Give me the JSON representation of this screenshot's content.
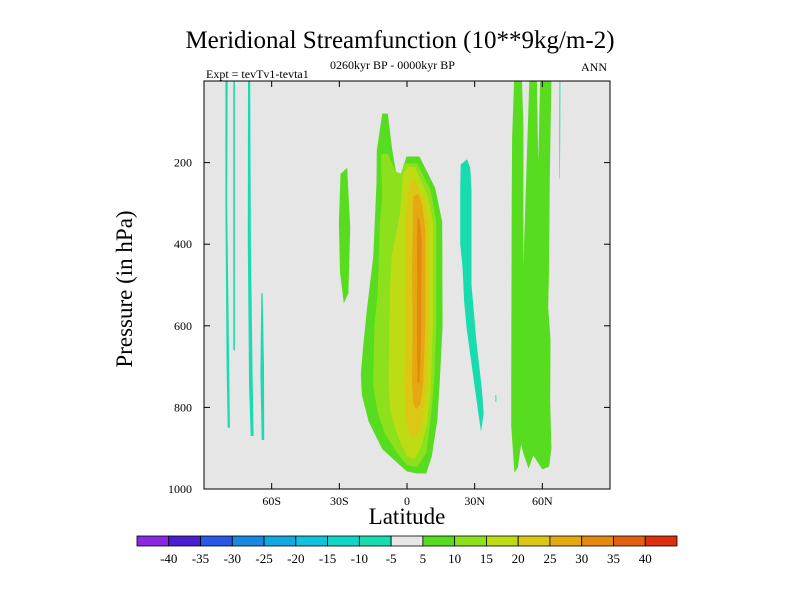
{
  "chart_data": {
    "type": "contour",
    "title": "Meridional Streamfunction (10**9kg/m-2)",
    "experiment_label": "Expt = tevTv1-tevta1",
    "period_label": "0260kyr BP - 0000kyr BP",
    "season_label": "ANN",
    "xlabel": "Latitude",
    "ylabel": "Pressure (in hPa)",
    "xlim": [
      -90,
      90
    ],
    "ylim": [
      1000,
      0
    ],
    "x_ticks": [
      {
        "value": -60,
        "label": "60S"
      },
      {
        "value": -30,
        "label": "30S"
      },
      {
        "value": 0,
        "label": "0"
      },
      {
        "value": 30,
        "label": "30N"
      },
      {
        "value": 60,
        "label": "60N"
      }
    ],
    "y_ticks": [
      {
        "value": 200,
        "label": "200"
      },
      {
        "value": 400,
        "label": "400"
      },
      {
        "value": 600,
        "label": "600"
      },
      {
        "value": 800,
        "label": "800"
      },
      {
        "value": 1000,
        "label": "1000"
      }
    ],
    "colorbar": {
      "levels": [
        -40,
        -35,
        -30,
        -25,
        -20,
        -15,
        -10,
        -5,
        5,
        10,
        15,
        20,
        25,
        30,
        35,
        40
      ],
      "colors": [
        "#8a28e6",
        "#4a1ed0",
        "#2858e8",
        "#1888e0",
        "#10a8e0",
        "#10c2dc",
        "#10d6c8",
        "#18dcae",
        "#e6e6e6",
        "#58dc20",
        "#8ce01c",
        "#bedc14",
        "#dcc814",
        "#e4a810",
        "#e48810",
        "#e06010",
        "#dc3010"
      ]
    },
    "background_color": "#e6e6e6",
    "regions": [
      {
        "value_band": "-10 to -5",
        "points": [
          [
            -80.5,
            0
          ],
          [
            -79.5,
            0
          ],
          [
            -79.7,
            300
          ],
          [
            -78.5,
            850
          ],
          [
            -79.5,
            850
          ],
          [
            -80,
            700
          ],
          [
            -80.5,
            300
          ]
        ]
      },
      {
        "value_band": "-10 to -5",
        "points": [
          [
            -77,
            0
          ],
          [
            -76.3,
            0
          ],
          [
            -76.3,
            660
          ],
          [
            -77,
            660
          ]
        ]
      },
      {
        "value_band": "-10 to -5",
        "points": [
          [
            -70.5,
            0
          ],
          [
            -69.5,
            0
          ],
          [
            -69.2,
            400
          ],
          [
            -68.4,
            740
          ],
          [
            -68,
            870
          ],
          [
            -69.3,
            870
          ],
          [
            -70,
            750
          ],
          [
            -70.6,
            400
          ]
        ]
      },
      {
        "value_band": "-10 to -5",
        "points": [
          [
            -64.6,
            520
          ],
          [
            -64,
            520
          ],
          [
            -63.4,
            700
          ],
          [
            -63.3,
            880
          ],
          [
            -64.4,
            880
          ],
          [
            -65,
            720
          ]
        ]
      },
      {
        "value_band": "5 to 10",
        "points": [
          [
            -29.5,
            228
          ],
          [
            -26.5,
            213
          ],
          [
            -25.2,
            360
          ],
          [
            -26,
            520
          ],
          [
            -28,
            545
          ],
          [
            -29.7,
            470
          ],
          [
            -30.2,
            345
          ]
        ]
      },
      {
        "value_band": "5 to 10",
        "points": [
          [
            -11,
            80
          ],
          [
            -8.5,
            80
          ],
          [
            -6.5,
            170
          ],
          [
            -4,
            250
          ],
          [
            -0.2,
            185
          ],
          [
            5.5,
            185
          ],
          [
            12.5,
            262
          ],
          [
            15.6,
            345
          ],
          [
            15.7,
            460
          ],
          [
            15.8,
            600
          ],
          [
            14.5,
            740
          ],
          [
            13.5,
            830
          ],
          [
            11,
            920
          ],
          [
            8.5,
            962
          ],
          [
            4.5,
            962
          ],
          [
            0,
            957
          ],
          [
            -3.5,
            940
          ],
          [
            -11,
            902
          ],
          [
            -17,
            835
          ],
          [
            -20,
            770
          ],
          [
            -20.5,
            720
          ],
          [
            -19.5,
            655
          ],
          [
            -17.8,
            560
          ],
          [
            -15,
            432
          ],
          [
            -13.5,
            250
          ],
          [
            -13.4,
            170
          ]
        ]
      },
      {
        "value_band": "10 to 15",
        "points": [
          [
            -11.5,
            180
          ],
          [
            -8.5,
            178
          ],
          [
            -5,
            222
          ],
          [
            -2.5,
            227
          ],
          [
            -1.4,
            202
          ],
          [
            4.5,
            202
          ],
          [
            10.5,
            268
          ],
          [
            13,
            345
          ],
          [
            13,
            600
          ],
          [
            12,
            740
          ],
          [
            10.5,
            830
          ],
          [
            8.5,
            912
          ],
          [
            4.5,
            946
          ],
          [
            0,
            942
          ],
          [
            -4,
            915
          ],
          [
            -9.8,
            865
          ],
          [
            -13,
            813
          ],
          [
            -15,
            748
          ],
          [
            -14.5,
            600
          ],
          [
            -13,
            520
          ],
          [
            -12,
            347
          ],
          [
            -11,
            285
          ]
        ]
      },
      {
        "value_band": "15 to 20",
        "points": [
          [
            -1.8,
            230
          ],
          [
            0.5,
            210
          ],
          [
            3.4,
            210
          ],
          [
            6.5,
            248
          ],
          [
            9.5,
            285
          ],
          [
            11.5,
            345
          ],
          [
            11.5,
            600
          ],
          [
            10.5,
            760
          ],
          [
            9,
            840
          ],
          [
            6.2,
            897
          ],
          [
            3.3,
            926
          ],
          [
            0,
            920
          ],
          [
            -2.5,
            892
          ],
          [
            -5,
            855
          ],
          [
            -7.5,
            805
          ],
          [
            -8.2,
            740
          ],
          [
            -7.8,
            600
          ],
          [
            -7.6,
            520
          ],
          [
            -6.8,
            430
          ],
          [
            -5,
            380
          ],
          [
            -3,
            320
          ]
        ]
      },
      {
        "value_band": "20 to 25",
        "points": [
          [
            0.8,
            255
          ],
          [
            3.2,
            238
          ],
          [
            5.5,
            268
          ],
          [
            8,
            300
          ],
          [
            9.5,
            348
          ],
          [
            9.6,
            600
          ],
          [
            8.8,
            740
          ],
          [
            7.5,
            820
          ],
          [
            5.5,
            860
          ],
          [
            3,
            875
          ],
          [
            1,
            865
          ],
          [
            -0.5,
            825
          ],
          [
            -1.2,
            740
          ],
          [
            -0.7,
            600
          ],
          [
            -0.6,
            480
          ],
          [
            -0.8,
            360
          ]
        ]
      },
      {
        "value_band": "25 to 30",
        "points": [
          [
            2.8,
            282
          ],
          [
            5,
            277
          ],
          [
            6.8,
            305
          ],
          [
            8.1,
            365
          ],
          [
            8.1,
            600
          ],
          [
            7.2,
            740
          ],
          [
            6,
            793
          ],
          [
            4,
            805
          ],
          [
            2.8,
            790
          ],
          [
            2.2,
            740
          ],
          [
            2.5,
            600
          ],
          [
            2.2,
            460
          ],
          [
            2.6,
            345
          ]
        ]
      },
      {
        "value_band": "30 to 35",
        "points": [
          [
            4.7,
            332
          ],
          [
            5.6,
            340
          ],
          [
            6.5,
            390
          ],
          [
            6.3,
            520
          ],
          [
            6.3,
            600
          ],
          [
            6,
            690
          ],
          [
            5.4,
            740
          ],
          [
            4.6,
            738
          ],
          [
            4.4,
            600
          ],
          [
            4.5,
            475
          ],
          [
            4.4,
            390
          ]
        ]
      },
      {
        "value_band": "-10 to -5",
        "points": [
          [
            23.8,
            205
          ],
          [
            26.6,
            192
          ],
          [
            28,
            212
          ],
          [
            28.6,
            265
          ],
          [
            28.6,
            500
          ],
          [
            30.8,
            640
          ],
          [
            33.3,
            760
          ],
          [
            34,
            815
          ],
          [
            32.8,
            860
          ],
          [
            31.5,
            810
          ],
          [
            26.5,
            610
          ],
          [
            25.3,
            540
          ],
          [
            24.6,
            455
          ],
          [
            23.6,
            400
          ],
          [
            23.6,
            265
          ]
        ]
      },
      {
        "value_band": "-10 to -5",
        "points": [
          [
            39.2,
            770
          ],
          [
            39.6,
            770
          ],
          [
            39.6,
            786
          ],
          [
            39.2,
            786
          ]
        ]
      },
      {
        "value_band": "5 to 10",
        "points": [
          [
            47.5,
            0
          ],
          [
            51,
            0
          ],
          [
            51.6,
            110
          ],
          [
            51.6,
            450
          ],
          [
            54.2,
            0
          ],
          [
            57.6,
            0
          ],
          [
            58.2,
            200
          ],
          [
            59,
            0
          ],
          [
            64,
            0
          ],
          [
            63.3,
            240
          ],
          [
            63,
            460
          ],
          [
            62.6,
            555
          ],
          [
            63.6,
            635
          ],
          [
            63.5,
            785
          ],
          [
            64,
            900
          ],
          [
            63,
            945
          ],
          [
            60,
            952
          ],
          [
            56,
            918
          ],
          [
            53.9,
            950
          ],
          [
            51.7,
            915
          ],
          [
            50.6,
            890
          ],
          [
            49.2,
            946
          ],
          [
            47.6,
            960
          ],
          [
            46.2,
            845
          ],
          [
            46.2,
            760
          ],
          [
            46.4,
            300
          ],
          [
            46.6,
            140
          ]
        ]
      },
      {
        "value_band": "-10 to -5",
        "points": [
          [
            67.6,
            0
          ],
          [
            68,
            0
          ],
          [
            67.9,
            140
          ],
          [
            67.8,
            240
          ],
          [
            67.6,
            240
          ],
          [
            67.5,
            140
          ]
        ]
      }
    ]
  }
}
